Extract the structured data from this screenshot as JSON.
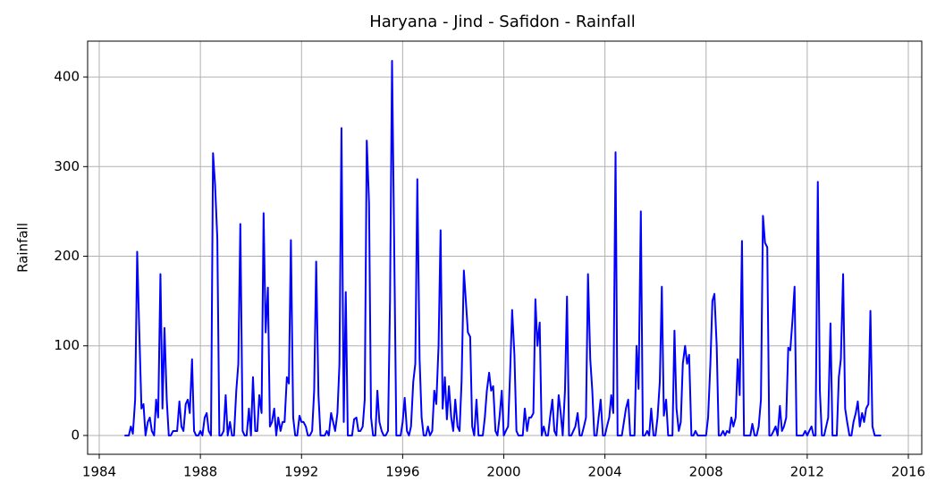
{
  "chart_data": {
    "type": "line",
    "title": "Haryana - Jind - Safidon - Rainfall",
    "y_label": "Rainfall",
    "x": [
      1985,
      1985.08,
      1985.17,
      1985.25,
      1985.33,
      1985.42,
      1985.5,
      1985.58,
      1985.67,
      1985.75,
      1985.83,
      1985.92,
      1986,
      1986.08,
      1986.17,
      1986.25,
      1986.33,
      1986.42,
      1986.5,
      1986.58,
      1986.67,
      1986.75,
      1986.83,
      1986.92,
      1987,
      1987.08,
      1987.17,
      1987.25,
      1987.33,
      1987.42,
      1987.5,
      1987.58,
      1987.67,
      1987.75,
      1987.83,
      1987.92,
      1988,
      1988.08,
      1988.17,
      1988.25,
      1988.33,
      1988.42,
      1988.5,
      1988.58,
      1988.67,
      1988.75,
      1988.83,
      1988.92,
      1989,
      1989.08,
      1989.17,
      1989.25,
      1989.33,
      1989.42,
      1989.5,
      1989.58,
      1989.67,
      1989.75,
      1989.83,
      1989.92,
      1990,
      1990.08,
      1990.17,
      1990.25,
      1990.33,
      1990.42,
      1990.5,
      1990.58,
      1990.67,
      1990.75,
      1990.83,
      1990.92,
      1991,
      1991.08,
      1991.17,
      1991.25,
      1991.33,
      1991.42,
      1991.5,
      1991.58,
      1991.67,
      1991.75,
      1991.83,
      1991.92,
      1992,
      1992.08,
      1992.17,
      1992.25,
      1992.33,
      1992.42,
      1992.5,
      1992.58,
      1992.67,
      1992.75,
      1992.83,
      1992.92,
      1993,
      1993.08,
      1993.17,
      1993.25,
      1993.33,
      1993.42,
      1993.5,
      1993.58,
      1993.67,
      1993.75,
      1993.83,
      1993.92,
      1994,
      1994.08,
      1994.17,
      1994.25,
      1994.33,
      1994.42,
      1994.5,
      1994.58,
      1994.67,
      1994.75,
      1994.83,
      1994.92,
      1995,
      1995.08,
      1995.17,
      1995.25,
      1995.33,
      1995.42,
      1995.5,
      1995.58,
      1995.67,
      1995.75,
      1995.83,
      1995.92,
      1996,
      1996.08,
      1996.17,
      1996.25,
      1996.33,
      1996.42,
      1996.5,
      1996.58,
      1996.67,
      1996.75,
      1996.83,
      1996.92,
      1997,
      1997.08,
      1997.17,
      1997.25,
      1997.33,
      1997.42,
      1997.5,
      1997.58,
      1997.67,
      1997.75,
      1997.83,
      1997.92,
      1998,
      1998.08,
      1998.17,
      1998.25,
      1998.33,
      1998.42,
      1998.5,
      1998.58,
      1998.67,
      1998.75,
      1998.83,
      1998.92,
      1999,
      1999.08,
      1999.17,
      1999.25,
      1999.33,
      1999.42,
      1999.5,
      1999.58,
      1999.67,
      1999.75,
      1999.83,
      1999.92,
      2000,
      2000.08,
      2000.17,
      2000.25,
      2000.33,
      2000.42,
      2000.5,
      2000.58,
      2000.67,
      2000.75,
      2000.83,
      2000.92,
      2001,
      2001.08,
      2001.17,
      2001.25,
      2001.33,
      2001.42,
      2001.5,
      2001.58,
      2001.67,
      2001.75,
      2001.83,
      2001.92,
      2002,
      2002.08,
      2002.17,
      2002.25,
      2002.33,
      2002.42,
      2002.5,
      2002.58,
      2002.67,
      2002.75,
      2002.83,
      2002.92,
      2003,
      2003.08,
      2003.17,
      2003.25,
      2003.33,
      2003.42,
      2003.5,
      2003.58,
      2003.67,
      2003.75,
      2003.83,
      2003.92,
      2004,
      2004.08,
      2004.17,
      2004.25,
      2004.33,
      2004.42,
      2004.5,
      2004.58,
      2004.67,
      2004.75,
      2004.83,
      2004.92,
      2005,
      2005.08,
      2005.17,
      2005.25,
      2005.33,
      2005.42,
      2005.5,
      2005.58,
      2005.67,
      2005.75,
      2005.83,
      2005.92,
      2006,
      2006.08,
      2006.17,
      2006.25,
      2006.33,
      2006.42,
      2006.5,
      2006.58,
      2006.67,
      2006.75,
      2006.83,
      2006.92,
      2007,
      2007.08,
      2007.17,
      2007.25,
      2007.33,
      2007.42,
      2007.5,
      2007.58,
      2007.67,
      2007.75,
      2007.83,
      2007.92,
      2008,
      2008.08,
      2008.17,
      2008.25,
      2008.33,
      2008.42,
      2008.5,
      2008.58,
      2008.67,
      2008.75,
      2008.83,
      2008.92,
      2009,
      2009.08,
      2009.17,
      2009.25,
      2009.33,
      2009.42,
      2009.5,
      2009.58,
      2009.67,
      2009.75,
      2009.83,
      2009.92,
      2010,
      2010.08,
      2010.17,
      2010.25,
      2010.33,
      2010.42,
      2010.5,
      2010.58,
      2010.67,
      2010.75,
      2010.83,
      2010.92,
      2011,
      2011.08,
      2011.17,
      2011.25,
      2011.33,
      2011.42,
      2011.5,
      2011.58,
      2011.67,
      2011.75,
      2011.83,
      2011.92,
      2012,
      2012.08,
      2012.17,
      2012.25,
      2012.33,
      2012.42,
      2012.5,
      2012.58,
      2012.67,
      2012.75,
      2012.83,
      2012.92,
      2013,
      2013.08,
      2013.17,
      2013.25,
      2013.33,
      2013.42,
      2013.5,
      2013.58,
      2013.67,
      2013.75,
      2013.83,
      2013.92,
      2014,
      2014.08,
      2014.17,
      2014.25,
      2014.33,
      2014.42,
      2014.5,
      2014.58,
      2014.67,
      2014.75,
      2014.83,
      2014.92
    ],
    "series": [
      {
        "name": "Rainfall",
        "color": "#0000ff",
        "values": [
          0,
          0,
          0,
          10,
          2,
          40,
          205,
          120,
          30,
          35,
          0,
          15,
          20,
          5,
          0,
          40,
          20,
          180,
          30,
          120,
          40,
          0,
          0,
          5,
          5,
          5,
          38,
          10,
          5,
          35,
          40,
          25,
          85,
          5,
          0,
          0,
          5,
          0,
          20,
          25,
          5,
          0,
          315,
          280,
          220,
          0,
          0,
          5,
          45,
          0,
          15,
          0,
          0,
          50,
          80,
          236,
          5,
          0,
          0,
          30,
          0,
          65,
          5,
          5,
          45,
          25,
          248,
          115,
          165,
          10,
          15,
          30,
          0,
          20,
          5,
          15,
          15,
          65,
          58,
          218,
          20,
          0,
          0,
          22,
          15,
          15,
          10,
          0,
          0,
          5,
          50,
          194,
          45,
          0,
          0,
          0,
          5,
          0,
          25,
          15,
          5,
          25,
          80,
          343,
          15,
          160,
          0,
          0,
          0,
          18,
          20,
          5,
          5,
          10,
          40,
          329,
          260,
          20,
          0,
          0,
          50,
          15,
          5,
          0,
          0,
          5,
          150,
          418,
          200,
          0,
          0,
          0,
          15,
          42,
          5,
          0,
          10,
          60,
          80,
          286,
          85,
          20,
          0,
          0,
          10,
          0,
          5,
          50,
          35,
          100,
          229,
          30,
          65,
          18,
          55,
          20,
          5,
          40,
          10,
          5,
          60,
          184,
          150,
          115,
          110,
          10,
          0,
          40,
          0,
          0,
          0,
          20,
          50,
          70,
          50,
          55,
          5,
          0,
          20,
          50,
          0,
          5,
          10,
          70,
          140,
          90,
          5,
          0,
          0,
          0,
          30,
          5,
          20,
          20,
          25,
          152,
          100,
          126,
          0,
          10,
          0,
          0,
          20,
          40,
          5,
          0,
          45,
          25,
          0,
          50,
          155,
          0,
          0,
          5,
          10,
          25,
          0,
          0,
          10,
          20,
          180,
          85,
          50,
          0,
          0,
          20,
          40,
          0,
          0,
          10,
          20,
          45,
          25,
          316,
          0,
          0,
          0,
          15,
          30,
          40,
          0,
          0,
          0,
          100,
          52,
          250,
          0,
          0,
          5,
          0,
          30,
          0,
          0,
          20,
          60,
          166,
          22,
          40,
          0,
          0,
          0,
          117,
          30,
          5,
          15,
          80,
          100,
          80,
          90,
          0,
          0,
          5,
          0,
          0,
          0,
          0,
          0,
          20,
          80,
          150,
          158,
          100,
          0,
          0,
          5,
          0,
          5,
          3,
          20,
          10,
          20,
          85,
          45,
          217,
          0,
          0,
          0,
          0,
          13,
          0,
          0,
          10,
          40,
          245,
          215,
          210,
          0,
          0,
          5,
          10,
          0,
          33,
          5,
          10,
          20,
          98,
          95,
          130,
          166,
          0,
          0,
          0,
          0,
          5,
          0,
          5,
          10,
          0,
          0,
          283,
          50,
          0,
          0,
          10,
          20,
          125,
          0,
          0,
          0,
          65,
          85,
          180,
          30,
          15,
          0,
          0,
          15,
          25,
          38,
          10,
          25,
          15,
          30,
          35,
          139,
          10,
          0,
          0,
          0,
          0
        ]
      }
    ],
    "xlim": [
      1983.54,
      2016.53
    ],
    "xticks": [
      1984,
      1988,
      1992,
      1996,
      2000,
      2004,
      2008,
      2012,
      2016
    ],
    "ylim": [
      -21,
      440
    ],
    "yticks": [
      0,
      100,
      200,
      300,
      400
    ],
    "grid": true
  }
}
